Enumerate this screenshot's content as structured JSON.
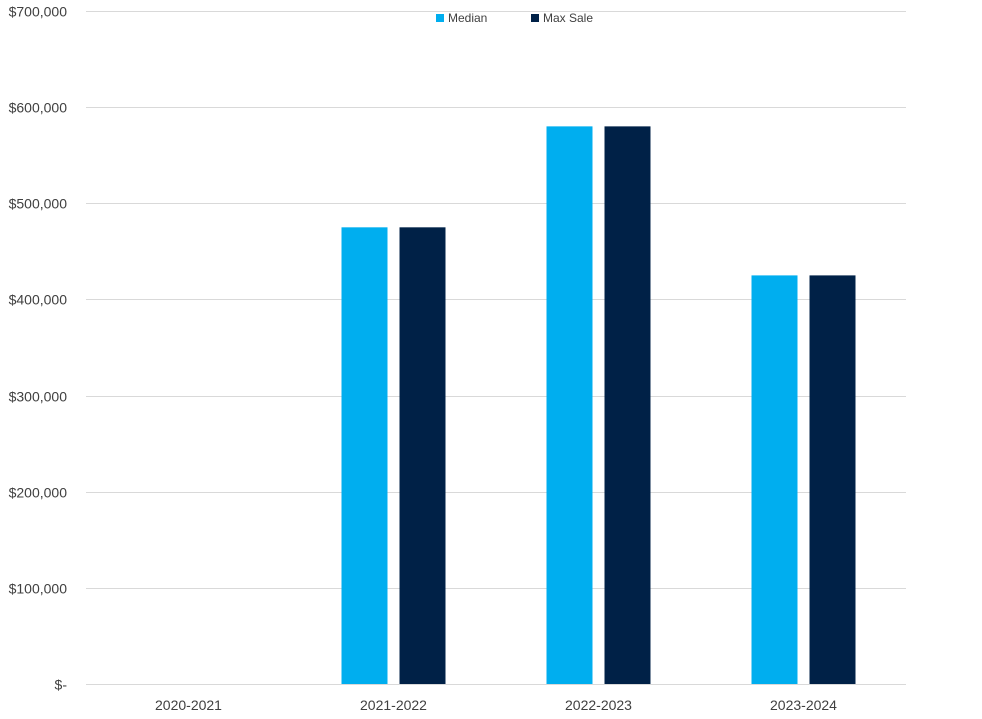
{
  "chart_data": {
    "type": "bar",
    "title": "",
    "xlabel": "",
    "ylabel": "",
    "categories": [
      "2020-2021",
      "2021-2022",
      "2022-2023",
      "2023-2024"
    ],
    "series": [
      {
        "name": "Median",
        "values": [
          0,
          475000,
          580000,
          425000
        ],
        "color": "#00AEEF"
      },
      {
        "name": "Max Sale",
        "values": [
          0,
          475000,
          580000,
          425000
        ],
        "color": "#002147"
      }
    ],
    "ylim": [
      0,
      700000
    ],
    "y_ticks": [
      0,
      100000,
      200000,
      300000,
      400000,
      500000,
      600000,
      700000
    ],
    "y_tick_labels": [
      "$-",
      "$100,000",
      "$200,000",
      "$300,000",
      "$400,000",
      "$500,000",
      "$600,000",
      "$700,000"
    ],
    "grid": true,
    "legend_position": "top-center",
    "gridline_color": "#D9D9D9"
  }
}
